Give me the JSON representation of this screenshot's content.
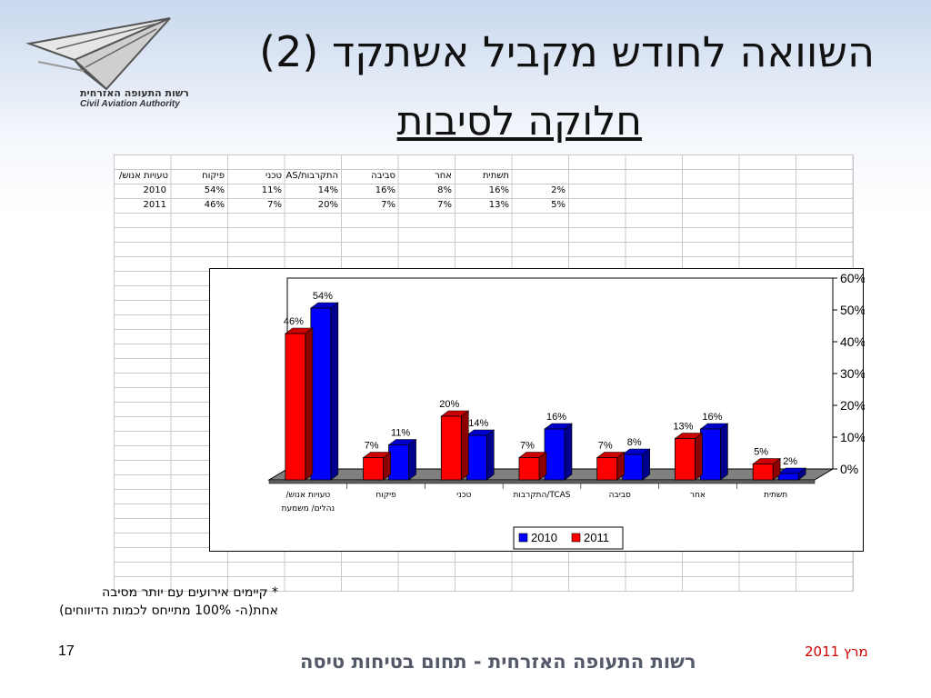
{
  "header": {
    "title_line1": "השוואה לחודש מקביל אשתקד (2)",
    "title_line2": "חלוקה לסיבות"
  },
  "logo": {
    "name_he": "רשות התעופה האזרחית",
    "name_en": "Civil Aviation Authority"
  },
  "sheet": {
    "headers": [
      "טעויות אנוש/ נהלים/ משמעת",
      "פיקוח",
      "טכני",
      "התקרבות/TCAS",
      "סביבה",
      "אחר",
      "תשתית"
    ],
    "rows": [
      {
        "year": "2010",
        "cells": [
          "54%",
          "11%",
          "14%",
          "16%",
          "8%",
          "16%",
          "2%"
        ]
      },
      {
        "year": "2011",
        "cells": [
          "46%",
          "7%",
          "20%",
          "7%",
          "7%",
          "13%",
          "5%"
        ]
      }
    ]
  },
  "chart_data": {
    "type": "bar",
    "categories": [
      "טעויות אנוש/ נהלים/ משמעת",
      "פיקוח",
      "טכני",
      "TCAS/התקרבות",
      "סביבה",
      "אחר",
      "תשתית"
    ],
    "series": [
      {
        "name": "2011",
        "color": "#ff0000",
        "values": [
          46,
          7,
          20,
          7,
          7,
          13,
          5
        ]
      },
      {
        "name": "2010",
        "color": "#0000ff",
        "values": [
          54,
          11,
          14,
          16,
          8,
          16,
          2
        ]
      }
    ],
    "y_tick_labels": [
      "0%",
      "10%",
      "20%",
      "30%",
      "40%",
      "50%",
      "60%"
    ],
    "ylim": [
      0,
      60
    ],
    "legend": [
      "2010",
      "2011"
    ],
    "legend_position": "bottom"
  },
  "footnote": {
    "line1": "* קיימים אירועים עם יותר מסיבה",
    "line2": "אחת(ה- 100% מתייחס לכמות הדיווחים)"
  },
  "footer": {
    "page_number": "17",
    "org": "רשות התעופה האזרחית - תחום בטיחות טיסה",
    "date": "מרץ 2011"
  }
}
